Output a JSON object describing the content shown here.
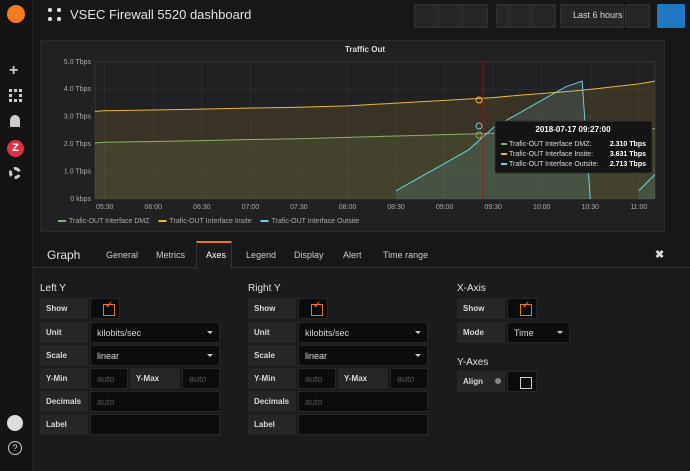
{
  "header": {
    "title": "VSEC Firewall 5520 dashboard",
    "time_range": "Last 6 hours"
  },
  "chart_data": {
    "type": "line",
    "title": "Traffic Out",
    "x": [
      "05:24",
      "05:30",
      "06:00",
      "06:30",
      "07:00",
      "07:30",
      "08:00",
      "08:30",
      "08:45",
      "09:00",
      "09:15",
      "09:30",
      "09:45",
      "10:00",
      "10:15",
      "10:25",
      "10:30",
      "10:45",
      "11:00",
      "11:10"
    ],
    "xlim": [
      "05:24",
      "11:10"
    ],
    "xticks": [
      "05:30",
      "06:00",
      "06:30",
      "07:00",
      "07:30",
      "08:00",
      "08:30",
      "09:00",
      "09:30",
      "10:00",
      "10:30",
      "11:00"
    ],
    "ylim": [
      0,
      5
    ],
    "yticks": [
      {
        "value": 0,
        "label": "0 kbps"
      },
      {
        "value": 1,
        "label": "1.0 Tbps"
      },
      {
        "value": 2,
        "label": "2.0 Tbps"
      },
      {
        "value": 3,
        "label": "3.0 Tbps"
      },
      {
        "value": 4,
        "label": "4.0 Tbps"
      },
      {
        "value": 5,
        "label": "5.0 Tbps"
      }
    ],
    "grid": true,
    "series": [
      {
        "name": "Trafic-OUT Interface DMZ",
        "color": "#7eb26d",
        "values": [
          2.05,
          2.07,
          2.1,
          2.13,
          2.17,
          2.2,
          2.25,
          2.3,
          2.32,
          2.35,
          2.37,
          2.4,
          2.42,
          2.45,
          2.47,
          2.5,
          2.5,
          2.52,
          2.55,
          2.57
        ]
      },
      {
        "name": "Trafic-OUT Interface Insite",
        "color": "#eab839",
        "values": [
          3.2,
          3.22,
          3.25,
          3.28,
          3.32,
          3.35,
          3.4,
          3.5,
          3.55,
          3.6,
          3.65,
          3.7,
          3.78,
          3.85,
          3.92,
          3.97,
          4.0,
          4.1,
          4.2,
          4.3
        ]
      },
      {
        "name": "Trafic-OUT Interface Outsite",
        "color": "#6ed0e0",
        "values": [
          null,
          null,
          null,
          null,
          null,
          null,
          null,
          0.3,
          0.8,
          1.3,
          1.8,
          2.6,
          3.1,
          3.6,
          4.1,
          4.3,
          0,
          null,
          0.3,
          0.9
        ]
      }
    ],
    "tooltip": {
      "time": "2018-07-17 09:27:00",
      "rows": [
        {
          "name": "Trafic-OUT Interface DMZ:",
          "value": "2.310 Tbps"
        },
        {
          "name": "Trafic-OUT Interface Insite:",
          "value": "3.631 Tbps"
        },
        {
          "name": "Trafic-OUT Interface Outsite:",
          "value": "2.713 Tbps"
        }
      ]
    }
  },
  "editor": {
    "title": "Graph",
    "tabs": [
      "General",
      "Metrics",
      "Axes",
      "Legend",
      "Display",
      "Alert",
      "Time range"
    ],
    "left_y": {
      "title": "Left Y",
      "show": "Show",
      "unit": "Unit",
      "unit_value": "kilobits/sec",
      "scale": "Scale",
      "scale_value": "linear",
      "ymin": "Y-Min",
      "ymax": "Y-Max",
      "placeholder": "auto",
      "decimals": "Decimals",
      "label": "Label"
    },
    "right_y": {
      "title": "Right Y",
      "show": "Show",
      "unit": "Unit",
      "unit_value": "kilobits/sec",
      "scale": "Scale",
      "scale_value": "linear",
      "ymin": "Y-Min",
      "ymax": "Y-Max",
      "placeholder": "auto",
      "decimals": "Decimals",
      "label": "Label"
    },
    "x_axis": {
      "title": "X-Axis",
      "show": "Show",
      "mode": "Mode",
      "mode_value": "Time"
    },
    "y_axes": {
      "title": "Y-Axes",
      "align": "Align"
    }
  }
}
